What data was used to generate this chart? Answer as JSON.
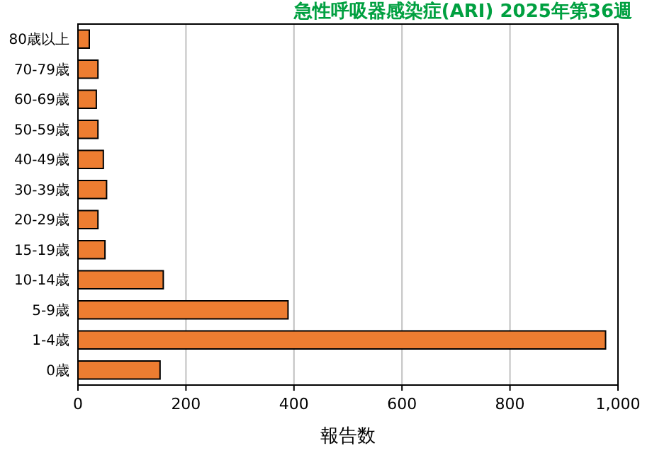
{
  "chart_data": {
    "type": "bar",
    "orientation": "horizontal",
    "title": "急性呼吸器感染症(ARI) 2025年第36週",
    "xlabel": "報告数",
    "categories": [
      "80歳以上",
      "70-79歳",
      "60-69歳",
      "50-59歳",
      "40-49歳",
      "30-39歳",
      "20-29歳",
      "15-19歳",
      "10-14歳",
      "5-9歳",
      "1-4歳",
      "0歳"
    ],
    "values": [
      21,
      37,
      34,
      37,
      47,
      53,
      37,
      50,
      158,
      389,
      977,
      152
    ],
    "color": "#ed7d31",
    "xlim": [
      0,
      1000
    ],
    "xticks": [
      0,
      200,
      400,
      600,
      800,
      {
        "value": 1000,
        "label": "1,000"
      }
    ],
    "grid": "x"
  }
}
